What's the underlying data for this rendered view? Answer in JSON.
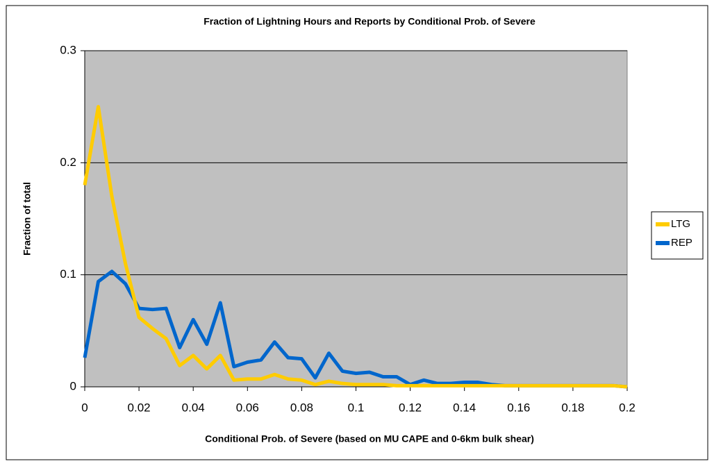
{
  "chart_data": {
    "type": "line",
    "title": "Fraction of Lightning Hours and Reports by Conditional Prob. of Severe",
    "xlabel": "Conditional Prob. of Severe (based on MU CAPE and 0-6km bulk shear)",
    "ylabel": "Fraction of total",
    "x": [
      0,
      0.005,
      0.01,
      0.015,
      0.02,
      0.025,
      0.03,
      0.035,
      0.04,
      0.045,
      0.05,
      0.055,
      0.06,
      0.065,
      0.07,
      0.075,
      0.08,
      0.085,
      0.09,
      0.095,
      0.1,
      0.105,
      0.11,
      0.115,
      0.12,
      0.125,
      0.13,
      0.135,
      0.14,
      0.145,
      0.15,
      0.155,
      0.16,
      0.165,
      0.17,
      0.175,
      0.18,
      0.185,
      0.19,
      0.195,
      0.2
    ],
    "series": [
      {
        "name": "LTG",
        "color": "#ffcc00",
        "values": [
          0.18,
          0.25,
          0.17,
          0.11,
          0.062,
          0.052,
          0.043,
          0.019,
          0.028,
          0.016,
          0.028,
          0.006,
          0.007,
          0.007,
          0.011,
          0.007,
          0.006,
          0.002,
          0.005,
          0.003,
          0.002,
          0.002,
          0.002,
          0.001,
          0.001,
          0.001,
          0.001,
          0.001,
          0.001,
          0.001,
          0.001,
          0.001,
          0.001,
          0.001,
          0.001,
          0.001,
          0.001,
          0.001,
          0.001,
          0.001,
          0
        ]
      },
      {
        "name": "REP",
        "color": "#0066cc",
        "values": [
          0.026,
          0.094,
          0.103,
          0.092,
          0.07,
          0.069,
          0.07,
          0.035,
          0.06,
          0.038,
          0.075,
          0.018,
          0.022,
          0.024,
          0.04,
          0.026,
          0.025,
          0.008,
          0.03,
          0.014,
          0.012,
          0.013,
          0.009,
          0.009,
          0.002,
          0.006,
          0.003,
          0.003,
          0.004,
          0.004,
          0.002,
          0.001,
          0.001,
          0.001,
          0.001,
          0.001,
          0.001,
          0.001,
          0.001,
          0.001,
          0
        ]
      }
    ],
    "xlim": [
      0,
      0.2
    ],
    "xticks": [
      0,
      0.02,
      0.04,
      0.06,
      0.08,
      0.1,
      0.12,
      0.14,
      0.16,
      0.18,
      0.2
    ],
    "ylim": [
      0,
      0.3
    ],
    "yticks": [
      0,
      0.1,
      0.2,
      0.3
    ],
    "grid": true,
    "legend": "right",
    "plot_background": "#c0c0c0"
  }
}
